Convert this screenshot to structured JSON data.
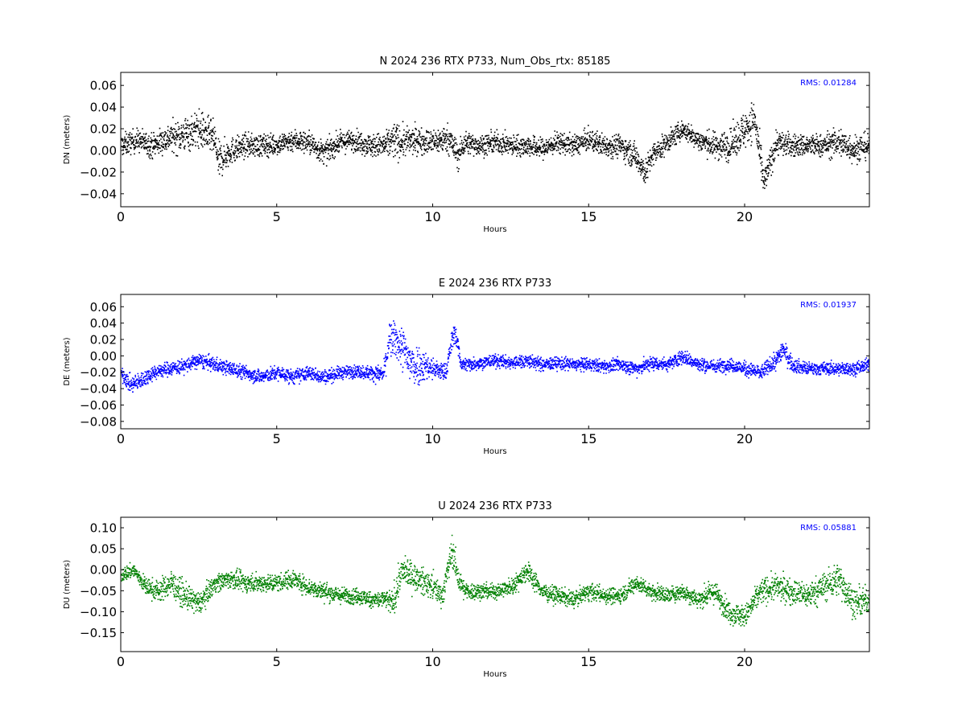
{
  "chart_data": [
    {
      "type": "scatter",
      "title": "N 2024 236 RTX  P733, Num_Obs_rtx: 85185",
      "xlabel": "Hours",
      "ylabel": "DN (meters)",
      "xlim": [
        0,
        24
      ],
      "ylim": [
        -0.052,
        0.072
      ],
      "xticks": [
        0,
        5,
        10,
        15,
        20
      ],
      "yticks": [
        -0.04,
        -0.02,
        0.0,
        0.02,
        0.04,
        0.06
      ],
      "ytick_labels": [
        "−0.04",
        "−0.02",
        "0.00",
        "0.02",
        "0.04",
        "0.06"
      ],
      "xtick_labels": [
        "0",
        "5",
        "10",
        "15",
        "20"
      ],
      "grid": false,
      "annotation": "RMS:  0.01284",
      "series": [
        {
          "color": "#000000",
          "x": [
            0,
            0.5,
            1,
            1.5,
            2,
            2.5,
            3,
            3.1,
            3.5,
            4,
            4.5,
            5,
            5.5,
            6,
            6.5,
            7,
            7.5,
            8,
            8.5,
            8.7,
            9,
            9.5,
            10,
            10.5,
            10.8,
            11,
            11.5,
            12,
            12.5,
            13,
            13.5,
            14,
            14.5,
            15,
            15.5,
            16,
            16.5,
            16.8,
            17,
            17.5,
            18,
            18.5,
            19,
            19.5,
            20,
            20.3,
            20.6,
            21,
            21.5,
            22,
            22.5,
            23,
            23.5,
            24
          ],
          "y": [
            0.005,
            0.01,
            0.005,
            0.012,
            0.015,
            0.02,
            0.01,
            -0.01,
            0.0,
            0.005,
            0.005,
            0.006,
            0.01,
            0.008,
            -0.002,
            0.008,
            0.01,
            0.005,
            0.005,
            0.01,
            0.008,
            0.01,
            0.008,
            0.012,
            -0.005,
            0.008,
            0.005,
            0.008,
            0.005,
            0.005,
            0.002,
            0.008,
            0.005,
            0.01,
            0.005,
            0.005,
            -0.005,
            -0.02,
            -0.005,
            0.008,
            0.02,
            0.01,
            0.005,
            0.005,
            0.02,
            0.03,
            -0.03,
            0.008,
            0.005,
            0.005,
            0.005,
            0.008,
            0.002,
            0.005
          ],
          "spread": [
            0.012,
            0.012,
            0.013,
            0.015,
            0.018,
            0.02,
            0.018,
            0.02,
            0.014,
            0.012,
            0.012,
            0.011,
            0.012,
            0.012,
            0.012,
            0.011,
            0.011,
            0.012,
            0.014,
            0.02,
            0.016,
            0.014,
            0.013,
            0.015,
            0.015,
            0.012,
            0.011,
            0.011,
            0.011,
            0.011,
            0.011,
            0.011,
            0.011,
            0.011,
            0.012,
            0.012,
            0.014,
            0.014,
            0.013,
            0.011,
            0.01,
            0.011,
            0.014,
            0.016,
            0.02,
            0.02,
            0.016,
            0.014,
            0.012,
            0.012,
            0.012,
            0.016,
            0.015,
            0.013
          ]
        }
      ]
    },
    {
      "type": "scatter",
      "title": "E 2024 236 RTX  P733",
      "xlabel": "Hours",
      "ylabel": "DE (meters)",
      "xlim": [
        0,
        24
      ],
      "ylim": [
        -0.089,
        0.075
      ],
      "xticks": [
        0,
        5,
        10,
        15,
        20
      ],
      "yticks": [
        -0.08,
        -0.06,
        -0.04,
        -0.02,
        0.0,
        0.02,
        0.04,
        0.06
      ],
      "ytick_labels": [
        "−0.08",
        "−0.06",
        "−0.04",
        "−0.02",
        "0.00",
        "0.02",
        "0.04",
        "0.06"
      ],
      "xtick_labels": [
        "0",
        "5",
        "10",
        "15",
        "20"
      ],
      "grid": false,
      "annotation": "RMS:  0.01937",
      "series": [
        {
          "color": "#0000ff",
          "x": [
            0,
            0.3,
            0.6,
            1,
            1.5,
            2,
            2.5,
            3,
            3.5,
            4,
            4.5,
            5,
            5.5,
            6,
            6.5,
            7,
            7.5,
            8,
            8.4,
            8.6,
            8.8,
            9,
            9.3,
            9.6,
            10,
            10.4,
            10.6,
            10.7,
            10.9,
            11,
            11.5,
            12,
            12.5,
            13,
            13.5,
            14,
            14.5,
            15,
            15.5,
            16,
            16.5,
            17,
            17.5,
            18,
            18.5,
            19,
            19.5,
            20,
            20.5,
            21,
            21.2,
            21.5,
            22,
            22.5,
            23,
            23.5,
            24
          ],
          "y": [
            -0.02,
            -0.035,
            -0.03,
            -0.02,
            -0.015,
            -0.012,
            -0.005,
            -0.01,
            -0.015,
            -0.02,
            -0.025,
            -0.02,
            -0.025,
            -0.02,
            -0.025,
            -0.02,
            -0.018,
            -0.02,
            -0.022,
            0.02,
            0.02,
            0.01,
            -0.01,
            -0.01,
            -0.015,
            -0.02,
            0.02,
            0.03,
            -0.01,
            -0.01,
            -0.008,
            -0.005,
            -0.008,
            -0.005,
            -0.01,
            -0.008,
            -0.01,
            -0.01,
            -0.012,
            -0.01,
            -0.015,
            -0.008,
            -0.01,
            0.0,
            -0.01,
            -0.012,
            -0.01,
            -0.015,
            -0.02,
            -0.005,
            0.01,
            -0.01,
            -0.015,
            -0.015,
            -0.015,
            -0.015,
            -0.01
          ],
          "spread": [
            0.01,
            0.012,
            0.012,
            0.01,
            0.01,
            0.01,
            0.01,
            0.01,
            0.01,
            0.01,
            0.01,
            0.01,
            0.01,
            0.01,
            0.01,
            0.009,
            0.009,
            0.01,
            0.012,
            0.025,
            0.025,
            0.03,
            0.035,
            0.025,
            0.015,
            0.012,
            0.015,
            0.015,
            0.01,
            0.01,
            0.009,
            0.009,
            0.009,
            0.01,
            0.009,
            0.009,
            0.009,
            0.009,
            0.009,
            0.009,
            0.01,
            0.01,
            0.009,
            0.01,
            0.01,
            0.009,
            0.009,
            0.01,
            0.01,
            0.012,
            0.015,
            0.01,
            0.009,
            0.009,
            0.009,
            0.009,
            0.009
          ]
        }
      ]
    },
    {
      "type": "scatter",
      "title": "U 2024 236 RTX  P733",
      "xlabel": "Hours",
      "ylabel": "DU (meters)",
      "xlim": [
        0,
        24
      ],
      "ylim": [
        -0.195,
        0.125
      ],
      "xticks": [
        0,
        5,
        10,
        15,
        20
      ],
      "yticks": [
        -0.15,
        -0.1,
        -0.05,
        0.0,
        0.05,
        0.1
      ],
      "ytick_labels": [
        "−0.15",
        "−0.10",
        "−0.05",
        "0.00",
        "0.05",
        "0.10"
      ],
      "xtick_labels": [
        "0",
        "5",
        "10",
        "15",
        "20"
      ],
      "grid": false,
      "annotation": "RMS:  0.05881",
      "series": [
        {
          "color": "#008000",
          "x": [
            0,
            0.4,
            0.8,
            1.2,
            1.6,
            2,
            2.5,
            3,
            3.5,
            4,
            4.5,
            5,
            5.5,
            6,
            6.5,
            7,
            7.5,
            8,
            8.5,
            8.7,
            9,
            9.5,
            10,
            10.3,
            10.6,
            10.8,
            11,
            11.5,
            12,
            12.5,
            13,
            13.5,
            14,
            14.5,
            15,
            15.5,
            16,
            16.5,
            17,
            17.5,
            18,
            18.5,
            19,
            19.5,
            20,
            20.5,
            21,
            21.5,
            22,
            22.5,
            23,
            23.5,
            24
          ],
          "y": [
            -0.01,
            0.0,
            -0.04,
            -0.05,
            -0.03,
            -0.06,
            -0.08,
            -0.03,
            -0.02,
            -0.03,
            -0.03,
            -0.03,
            -0.02,
            -0.04,
            -0.05,
            -0.06,
            -0.06,
            -0.07,
            -0.07,
            -0.08,
            0.0,
            -0.02,
            -0.04,
            -0.06,
            0.05,
            -0.02,
            -0.05,
            -0.05,
            -0.05,
            -0.04,
            0.0,
            -0.05,
            -0.06,
            -0.07,
            -0.05,
            -0.06,
            -0.06,
            -0.03,
            -0.05,
            -0.06,
            -0.05,
            -0.07,
            -0.05,
            -0.1,
            -0.11,
            -0.05,
            -0.04,
            -0.05,
            -0.06,
            -0.04,
            -0.02,
            -0.08,
            -0.07
          ],
          "spread": [
            0.02,
            0.02,
            0.025,
            0.03,
            0.035,
            0.035,
            0.03,
            0.025,
            0.025,
            0.025,
            0.025,
            0.025,
            0.025,
            0.025,
            0.025,
            0.022,
            0.022,
            0.022,
            0.025,
            0.04,
            0.04,
            0.035,
            0.035,
            0.03,
            0.04,
            0.04,
            0.025,
            0.022,
            0.022,
            0.022,
            0.03,
            0.022,
            0.022,
            0.022,
            0.022,
            0.022,
            0.022,
            0.022,
            0.022,
            0.022,
            0.022,
            0.025,
            0.03,
            0.03,
            0.03,
            0.035,
            0.035,
            0.035,
            0.035,
            0.04,
            0.045,
            0.04,
            0.035
          ]
        }
      ]
    }
  ]
}
